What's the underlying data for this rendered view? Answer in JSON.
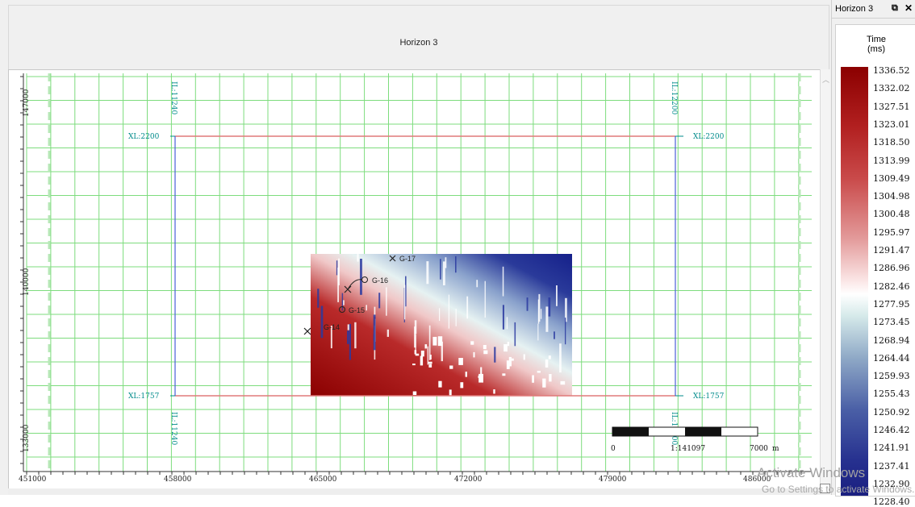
{
  "map": {
    "title": "Horizon 3",
    "x_ticks": [
      "451000",
      "458000",
      "465000",
      "472000",
      "479000",
      "486000"
    ],
    "y_ticks": [
      "147000",
      "140000",
      "133000"
    ],
    "survey_labels": {
      "il_start": "IL:11240",
      "il_end": "IL:12200",
      "xl_top": "XL:2200",
      "xl_bottom": "XL:1757"
    },
    "wells": [
      "G-14",
      "G-15",
      "G-16",
      "G-17"
    ],
    "scale_bar": {
      "start": "0",
      "mid": "1:141097",
      "end": "7000",
      "unit": "m"
    },
    "colors": {
      "grid": "#7ddc7d",
      "outline_h": "#e07a7a",
      "outline_v": "#4a5fd8",
      "annotation": "#008b8b"
    }
  },
  "legend": {
    "window_title": "Horizon 3",
    "pin_icon": "pin-icon",
    "close_icon": "close-icon",
    "quantity": "Time",
    "unit": "(ms)",
    "values": [
      "1336.52",
      "1332.02",
      "1327.51",
      "1323.01",
      "1318.50",
      "1313.99",
      "1309.49",
      "1304.98",
      "1300.48",
      "1295.97",
      "1291.47",
      "1286.96",
      "1282.46",
      "1277.95",
      "1273.45",
      "1268.94",
      "1264.44",
      "1259.93",
      "1255.43",
      "1250.92",
      "1246.42",
      "1241.91",
      "1237.41",
      "1232.90",
      "1228.40"
    ],
    "colors": {
      "max": "#8b0000",
      "mid": "#ffffff",
      "min": "#1a1f80"
    }
  },
  "watermark": {
    "line1": "Activate Windows",
    "line2": "Go to Settings to activate Windows."
  }
}
